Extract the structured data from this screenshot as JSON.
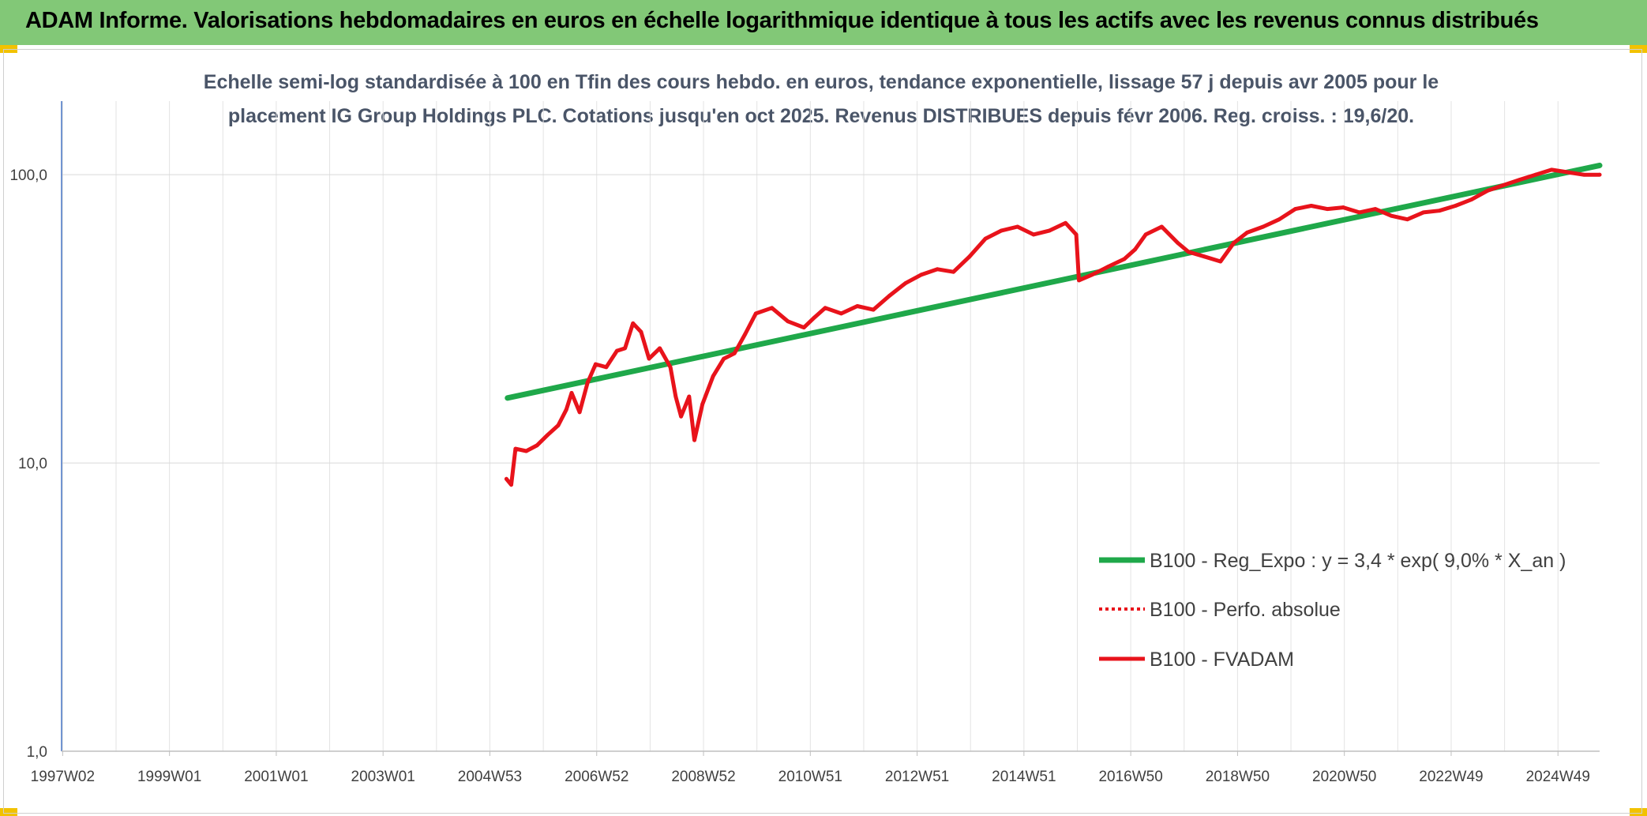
{
  "header": {
    "title": "ADAM Informe. Valorisations hebdomadaires en euros en échelle logarithmique identique à tous les actifs avec les revenus connus distribués"
  },
  "chart_data": {
    "type": "line",
    "title_line1": "Echelle semi-log standardisée à 100 en Tfin des cours hebdo. en euros, tendance exponentielle, lissage 57 j depuis avr 2005 pour le",
    "title_line2": "placement IG Group Holdings PLC. Cotations jusqu'en oct 2025. Revenus DISTRIBUES depuis févr 2006. Reg. croiss. : 19,6/20.",
    "y_scale": "log",
    "ylim": [
      1,
      180
    ],
    "y_ticks": [
      "1,0",
      "10,0",
      "100,0"
    ],
    "x_ticks": [
      "1997W02",
      "1999W01",
      "2001W01",
      "2003W01",
      "2004W53",
      "2006W52",
      "2008W52",
      "2010W51",
      "2012W51",
      "2014W51",
      "2016W50",
      "2018W50",
      "2020W50",
      "2022W49",
      "2024W49"
    ],
    "xlim": [
      1997.0,
      2025.8
    ],
    "grid": true,
    "legend_position": "right",
    "colors": {
      "trend": "#1fa84a",
      "series": "#e8131b",
      "axis": "#4472c4"
    },
    "series": [
      {
        "name": "B100 - Reg_Expo : y = 3,4 * exp( 9,0% *  X_an )",
        "style": "solid-thick",
        "x": [
          2005.35,
          2025.8
        ],
        "values": [
          16.8,
          107.7
        ]
      },
      {
        "name": "B100 - Perfo. absolue",
        "style": "dotted",
        "x": [],
        "values": []
      },
      {
        "name": "B100 - FVADAM",
        "style": "solid",
        "x": [
          2005.33,
          2005.42,
          2005.5,
          2005.7,
          2005.9,
          2006.1,
          2006.3,
          2006.45,
          2006.55,
          2006.7,
          2006.85,
          2007.0,
          2007.2,
          2007.4,
          2007.55,
          2007.7,
          2007.85,
          2008.0,
          2008.2,
          2008.4,
          2008.5,
          2008.6,
          2008.75,
          2008.85,
          2009.0,
          2009.2,
          2009.4,
          2009.6,
          2009.8,
          2010.0,
          2010.3,
          2010.6,
          2010.9,
          2011.1,
          2011.3,
          2011.6,
          2011.9,
          2012.2,
          2012.5,
          2012.8,
          2013.1,
          2013.4,
          2013.7,
          2014.0,
          2014.3,
          2014.6,
          2014.9,
          2015.2,
          2015.5,
          2015.8,
          2016.0,
          2016.05,
          2016.3,
          2016.6,
          2016.9,
          2017.1,
          2017.3,
          2017.6,
          2017.9,
          2018.1,
          2018.4,
          2018.7,
          2018.95,
          2019.2,
          2019.5,
          2019.8,
          2020.1,
          2020.4,
          2020.7,
          2021.0,
          2021.3,
          2021.6,
          2021.9,
          2022.2,
          2022.5,
          2022.8,
          2023.1,
          2023.4,
          2023.7,
          2024.0,
          2024.3,
          2024.6,
          2024.9,
          2025.2,
          2025.5,
          2025.8
        ],
        "values": [
          8.8,
          8.4,
          11.2,
          11.0,
          11.5,
          12.5,
          13.5,
          15.3,
          17.5,
          15.0,
          19.0,
          22.0,
          21.5,
          24.5,
          25.0,
          30.5,
          28.5,
          23.0,
          25.0,
          21.5,
          17.0,
          14.5,
          17.0,
          12.0,
          16.0,
          20.0,
          23.0,
          24.0,
          28.0,
          33.0,
          34.5,
          31.0,
          29.5,
          32.0,
          34.5,
          33.0,
          35.0,
          34.0,
          38.0,
          42.0,
          45.0,
          47.0,
          46.0,
          52.0,
          60.0,
          64.0,
          66.0,
          62.0,
          64.0,
          68.0,
          62.0,
          43.0,
          45.0,
          48.0,
          51.0,
          55.0,
          62.0,
          66.0,
          58.0,
          54.0,
          52.0,
          50.0,
          58.0,
          63.0,
          66.0,
          70.0,
          76.0,
          78.0,
          76.0,
          77.0,
          74.0,
          76.0,
          72.0,
          70.0,
          74.0,
          75.0,
          78.0,
          82.0,
          88.0,
          92.0,
          96.0,
          100.0,
          104.0,
          102.0,
          100.0,
          100.0
        ]
      }
    ]
  }
}
